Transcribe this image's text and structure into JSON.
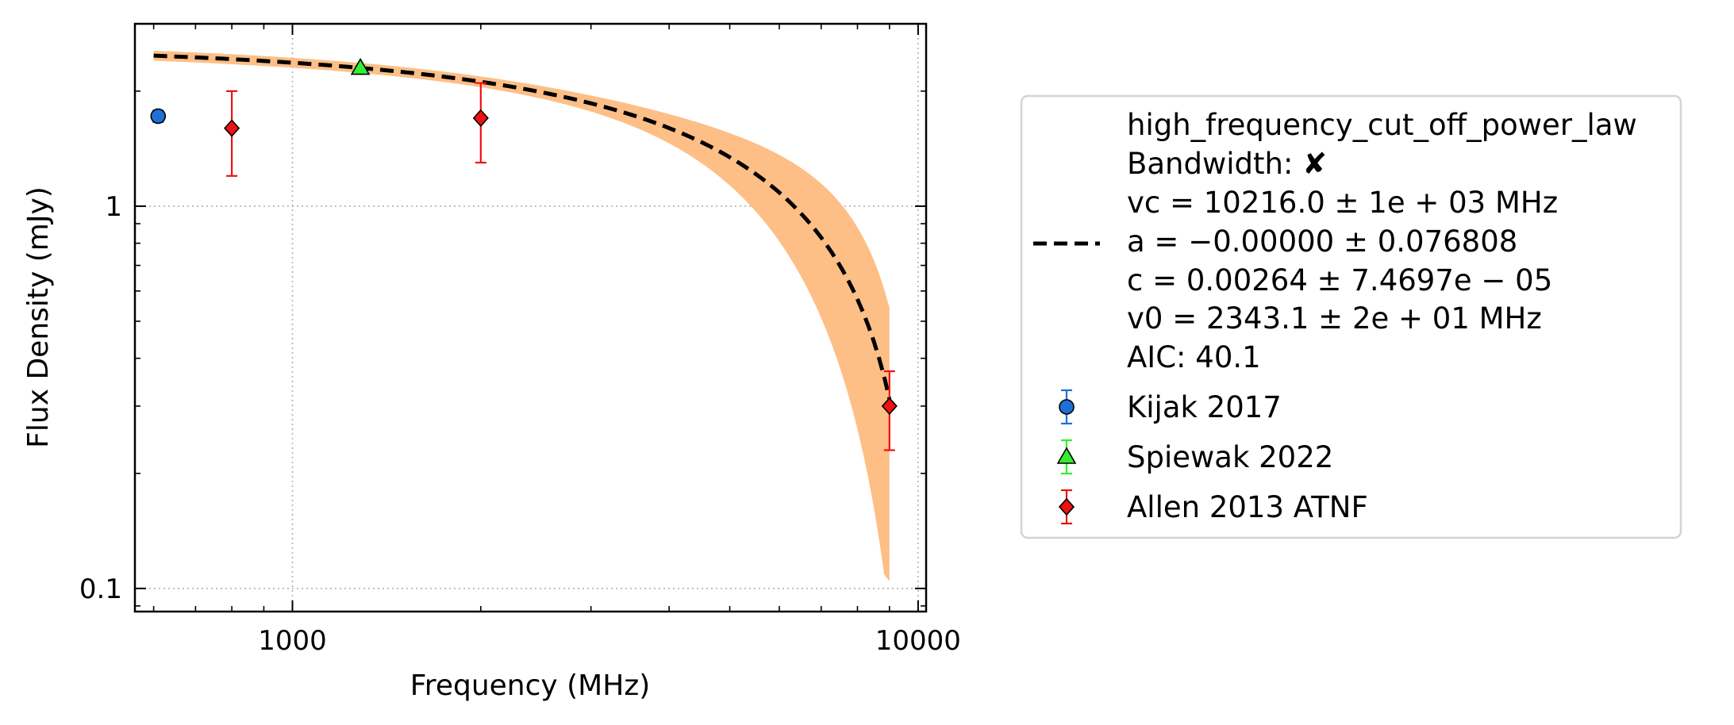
{
  "chart_data": {
    "type": "scatter",
    "title": "",
    "xlabel": "Frequency (MHz)",
    "ylabel": "Flux Density (mJy)",
    "xscale": "log",
    "yscale": "log",
    "xlim": [
      560,
      10300
    ],
    "ylim": [
      0.087,
      3.0
    ],
    "grid": true,
    "legend_position": "right, outside plot",
    "x_ticks": [
      {
        "value": 1000,
        "label": "1000"
      },
      {
        "value": 10000,
        "label": "10000"
      }
    ],
    "y_ticks": [
      {
        "value": 0.1,
        "label": "0.1"
      },
      {
        "value": 1,
        "label": "1"
      }
    ],
    "model": {
      "name": "high_frequency_cut_off_power_law",
      "color": "#000000",
      "band_color": "#fdbf86",
      "vc": 10216.0,
      "v0": 2343.1,
      "a": 0.0,
      "c": 0.00264,
      "x_range": [
        600,
        9000
      ],
      "band_fraction_at_end": 0.7,
      "legend_lines": [
        "high_frequency_cut_off_power_law",
        "Bandwidth: ✘",
        "vc = 10216.0 ± 1e + 03 MHz",
        "a = −0.00000 ± 0.076808",
        "c = 0.00264 ± 7.4697e − 05",
        "v0 = 2343.1 ± 2e + 01 MHz",
        "AIC: 40.1"
      ]
    },
    "series": [
      {
        "name": "Kijak 2017",
        "marker": "circle",
        "color": "#1f6fd6",
        "error_color": "#1f6fd6",
        "points": [
          {
            "x": 610,
            "y": 1.72,
            "yerr_low": 0.06,
            "yerr_high": 0.06
          }
        ]
      },
      {
        "name": "Spiewak 2022",
        "marker": "triangle",
        "color": "#33ee33",
        "error_color": "#33ee33",
        "points": [
          {
            "x": 1284,
            "y": 2.3,
            "yerr_low": 0.02,
            "yerr_high": 0.02
          }
        ]
      },
      {
        "name": "Allen 2013 ATNF",
        "marker": "diamond",
        "color": "#ee1111",
        "error_color": "#ee1111",
        "points": [
          {
            "x": 800,
            "y": 1.6,
            "yerr_low": 0.4,
            "yerr_high": 0.4
          },
          {
            "x": 2000,
            "y": 1.7,
            "yerr_low": 0.4,
            "yerr_high": 0.4
          },
          {
            "x": 9000,
            "y": 0.3,
            "yerr_low": 0.07,
            "yerr_high": 0.07
          }
        ]
      }
    ]
  }
}
